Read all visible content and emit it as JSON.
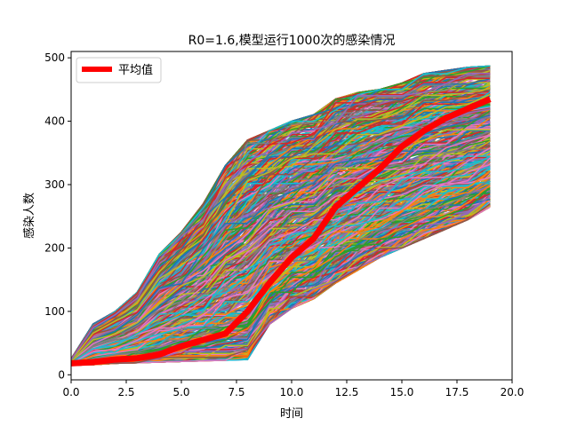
{
  "chart_data": {
    "type": "line",
    "title": "R0=1.6,模型运行1000次的感染情况",
    "xlabel": "时间",
    "ylabel": "感染人数",
    "xlim": [
      0,
      20
    ],
    "ylim": [
      -8,
      510
    ],
    "xticks": [
      0.0,
      2.5,
      5.0,
      7.5,
      10.0,
      12.5,
      15.0,
      17.5,
      20.0
    ],
    "xtick_labels": [
      "0.0",
      "2.5",
      "5.0",
      "7.5",
      "10.0",
      "12.5",
      "15.0",
      "17.5",
      "20.0"
    ],
    "yticks": [
      0,
      100,
      200,
      300,
      400,
      500
    ],
    "ytick_labels": [
      "0",
      "100",
      "200",
      "300",
      "400",
      "500"
    ],
    "grid": false,
    "legend": {
      "position": "top-left",
      "entries": [
        "平均值"
      ]
    },
    "simulation_runs": 1000,
    "simulation_palette": [
      "#1f77b4",
      "#ff7f0e",
      "#2ca02c",
      "#d62728",
      "#9467bd",
      "#8c564b",
      "#e377c2",
      "#7f7f7f",
      "#bcbd22",
      "#17becf"
    ],
    "x": [
      0,
      1,
      2,
      3,
      4,
      5,
      6,
      7,
      8,
      9,
      10,
      11,
      12,
      13,
      14,
      15,
      16,
      17,
      18,
      19
    ],
    "series": [
      {
        "name": "平均值",
        "color": "#ff0000",
        "values": [
          18,
          20,
          24,
          26,
          32,
          45,
          55,
          65,
          100,
          145,
          185,
          215,
          265,
          295,
          325,
          360,
          385,
          405,
          420,
          435
        ]
      }
    ],
    "envelope": {
      "upper": [
        25,
        80,
        100,
        130,
        190,
        225,
        270,
        330,
        370,
        385,
        400,
        410,
        435,
        445,
        450,
        460,
        475,
        480,
        485,
        487
      ],
      "lower": [
        15,
        16,
        18,
        19,
        20,
        21,
        22,
        23,
        24,
        80,
        105,
        120,
        145,
        165,
        185,
        200,
        215,
        230,
        245,
        265
      ]
    }
  }
}
